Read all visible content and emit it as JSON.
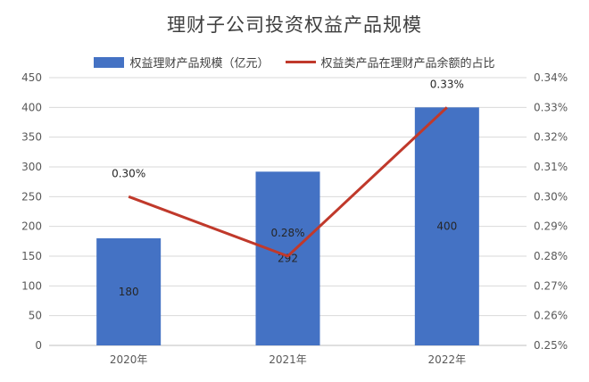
{
  "colors": {
    "bar": "#4472C4",
    "line": "#C0392B",
    "grid": "#d9d9d9",
    "axis": "#bfbfbf"
  },
  "chart_data": {
    "type": "bar+line",
    "title": "理财子公司投资权益产品规模",
    "categories": [
      "2020年",
      "2021年",
      "2022年"
    ],
    "series": [
      {
        "name": "权益理财产品规模（亿元）",
        "type": "bar",
        "axis": "left",
        "values": [
          180,
          292,
          400
        ],
        "data_labels": [
          "180",
          "292",
          "400"
        ]
      },
      {
        "name": "权益类产品在理财产品余额的占比",
        "type": "line",
        "axis": "right",
        "values": [
          0.3,
          0.28,
          0.33
        ],
        "data_labels": [
          "0.30%",
          "0.28%",
          "0.33%"
        ]
      }
    ],
    "y_left": {
      "lim": [
        0,
        450
      ],
      "ticks": [
        "0",
        "50",
        "100",
        "150",
        "200",
        "250",
        "300",
        "350",
        "400",
        "450"
      ]
    },
    "y_right": {
      "lim": [
        0.25,
        0.34
      ],
      "ticks": [
        "0.25%",
        "0.26%",
        "0.27%",
        "0.28%",
        "0.29%",
        "0.30%",
        "0.31%",
        "0.32%",
        "0.33%",
        "0.34%"
      ]
    },
    "grid": true,
    "legend": "top"
  }
}
